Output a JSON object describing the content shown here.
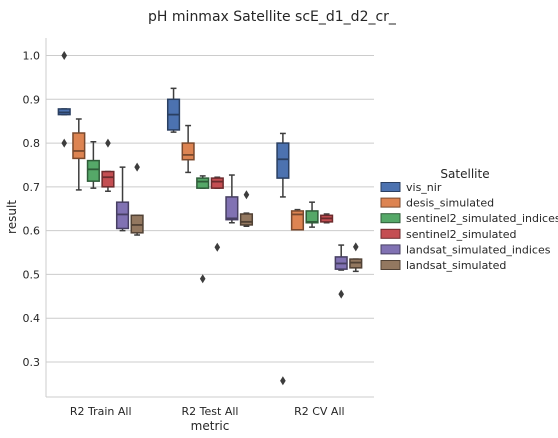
{
  "chart_data": {
    "type": "box",
    "title": "pH minmax Satellite scE_d1_d2_cr_",
    "xlabel": "metric",
    "ylabel": "result",
    "categories": [
      "R2 Train All",
      "R2 Test All",
      "R2 CV All"
    ],
    "ylim": [
      0.22,
      1.04
    ],
    "yticks": [
      0.3,
      0.4,
      0.5,
      0.6,
      0.7,
      0.8,
      0.9,
      1.0
    ],
    "ytick_labels": [
      "0.3",
      "0.4",
      "0.5",
      "0.6",
      "0.7",
      "0.8",
      "0.9",
      "1.0"
    ],
    "grid": "horizontal",
    "legend": {
      "title": "Satellite",
      "placement": "right"
    },
    "series": [
      {
        "name": "vis_nir",
        "color": "#4c72b0",
        "boxes": [
          {
            "whislo": 0.865,
            "q1": 0.865,
            "med": 0.87,
            "q3": 0.878,
            "whishi": 0.878,
            "fliers": [
              1.0,
              0.8
            ]
          },
          {
            "whislo": 0.825,
            "q1": 0.83,
            "med": 0.865,
            "q3": 0.9,
            "whishi": 0.925,
            "fliers": []
          },
          {
            "whislo": 0.677,
            "q1": 0.72,
            "med": 0.763,
            "q3": 0.8,
            "whishi": 0.822,
            "fliers": [
              0.257
            ]
          }
        ]
      },
      {
        "name": "desis_simulated",
        "color": "#dd8452",
        "boxes": [
          {
            "whislo": 0.693,
            "q1": 0.765,
            "med": 0.782,
            "q3": 0.823,
            "whishi": 0.855,
            "fliers": []
          },
          {
            "whislo": 0.733,
            "q1": 0.762,
            "med": 0.773,
            "q3": 0.8,
            "whishi": 0.84,
            "fliers": []
          },
          {
            "whislo": 0.602,
            "q1": 0.602,
            "med": 0.637,
            "q3": 0.645,
            "whishi": 0.648,
            "fliers": []
          }
        ]
      },
      {
        "name": "sentinel2_simulated_indices",
        "color": "#55a868",
        "boxes": [
          {
            "whislo": 0.697,
            "q1": 0.713,
            "med": 0.74,
            "q3": 0.76,
            "whishi": 0.803,
            "fliers": []
          },
          {
            "whislo": 0.697,
            "q1": 0.697,
            "med": 0.712,
            "q3": 0.72,
            "whishi": 0.725,
            "fliers": [
              0.49
            ]
          },
          {
            "whislo": 0.608,
            "q1": 0.618,
            "med": 0.62,
            "q3": 0.645,
            "whishi": 0.665,
            "fliers": []
          }
        ]
      },
      {
        "name": "sentinel2_simulated",
        "color": "#c44e52",
        "boxes": [
          {
            "whislo": 0.69,
            "q1": 0.7,
            "med": 0.722,
            "q3": 0.735,
            "whishi": 0.735,
            "fliers": [
              0.8
            ]
          },
          {
            "whislo": 0.697,
            "q1": 0.697,
            "med": 0.712,
            "q3": 0.72,
            "whishi": 0.722,
            "fliers": [
              0.562
            ]
          },
          {
            "whislo": 0.618,
            "q1": 0.62,
            "med": 0.628,
            "q3": 0.635,
            "whishi": 0.638,
            "fliers": []
          }
        ]
      },
      {
        "name": "landsat_simulated_indices",
        "color": "#8172b3",
        "boxes": [
          {
            "whislo": 0.6,
            "q1": 0.605,
            "med": 0.637,
            "q3": 0.665,
            "whishi": 0.745,
            "fliers": []
          },
          {
            "whislo": 0.618,
            "q1": 0.625,
            "med": 0.628,
            "q3": 0.677,
            "whishi": 0.727,
            "fliers": []
          },
          {
            "whislo": 0.51,
            "q1": 0.512,
            "med": 0.525,
            "q3": 0.54,
            "whishi": 0.567,
            "fliers": [
              0.455
            ]
          }
        ]
      },
      {
        "name": "landsat_simulated",
        "color": "#937860",
        "boxes": [
          {
            "whislo": 0.59,
            "q1": 0.595,
            "med": 0.613,
            "q3": 0.635,
            "whishi": 0.635,
            "fliers": [
              0.745
            ]
          },
          {
            "whislo": 0.61,
            "q1": 0.613,
            "med": 0.62,
            "q3": 0.638,
            "whishi": 0.64,
            "fliers": [
              0.682
            ]
          },
          {
            "whislo": 0.507,
            "q1": 0.515,
            "med": 0.527,
            "q3": 0.535,
            "whishi": 0.535,
            "fliers": [
              0.563
            ]
          }
        ]
      }
    ]
  }
}
